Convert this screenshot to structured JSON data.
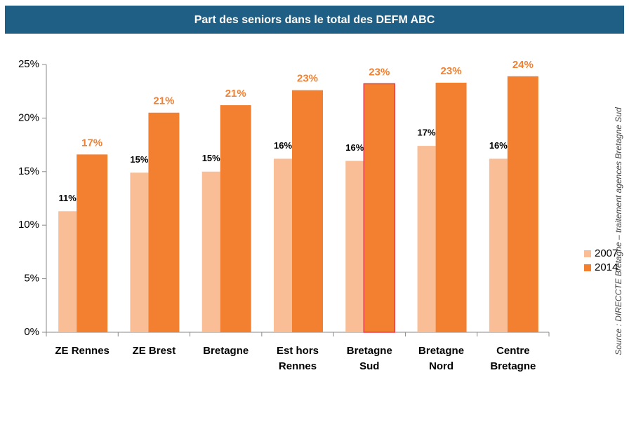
{
  "chart_data": {
    "type": "bar",
    "title": "Part des seniors dans le total des DEFM ABC",
    "source": "Source : DIRECCTE Bretagne – traitement agences Bretagne Sud",
    "categories": [
      "ZE Rennes",
      "ZE Brest",
      "Bretagne",
      "Est hors Rennes",
      "Bretagne Sud",
      "Bretagne Nord",
      "Centre Bretagne"
    ],
    "series": [
      {
        "name": "2007",
        "color": "#f9be95",
        "label_color": "#000000",
        "values": [
          11.3,
          14.9,
          15.0,
          16.2,
          16.0,
          17.4,
          16.2
        ],
        "value_labels": [
          "11%",
          "15%",
          "15%",
          "16%",
          "16%",
          "17%",
          "16%"
        ]
      },
      {
        "name": "2014",
        "color": "#f28030",
        "label_color": "#f28030",
        "values": [
          16.6,
          20.5,
          21.2,
          22.6,
          23.2,
          23.3,
          23.9
        ],
        "value_labels": [
          "17%",
          "21%",
          "21%",
          "23%",
          "23%",
          "23%",
          "24%"
        ]
      }
    ],
    "highlight": {
      "series": 1,
      "index": 4,
      "stroke": "#e0404a"
    },
    "ylim": [
      0,
      25
    ],
    "yticks": [
      {
        "value": 0,
        "label": "0%"
      },
      {
        "value": 5,
        "label": "5%"
      },
      {
        "value": 10,
        "label": "10%"
      },
      {
        "value": 15,
        "label": "15%"
      },
      {
        "value": 20,
        "label": "20%"
      },
      {
        "value": 25,
        "label": "25%"
      }
    ],
    "grid": false,
    "legend": "right"
  }
}
